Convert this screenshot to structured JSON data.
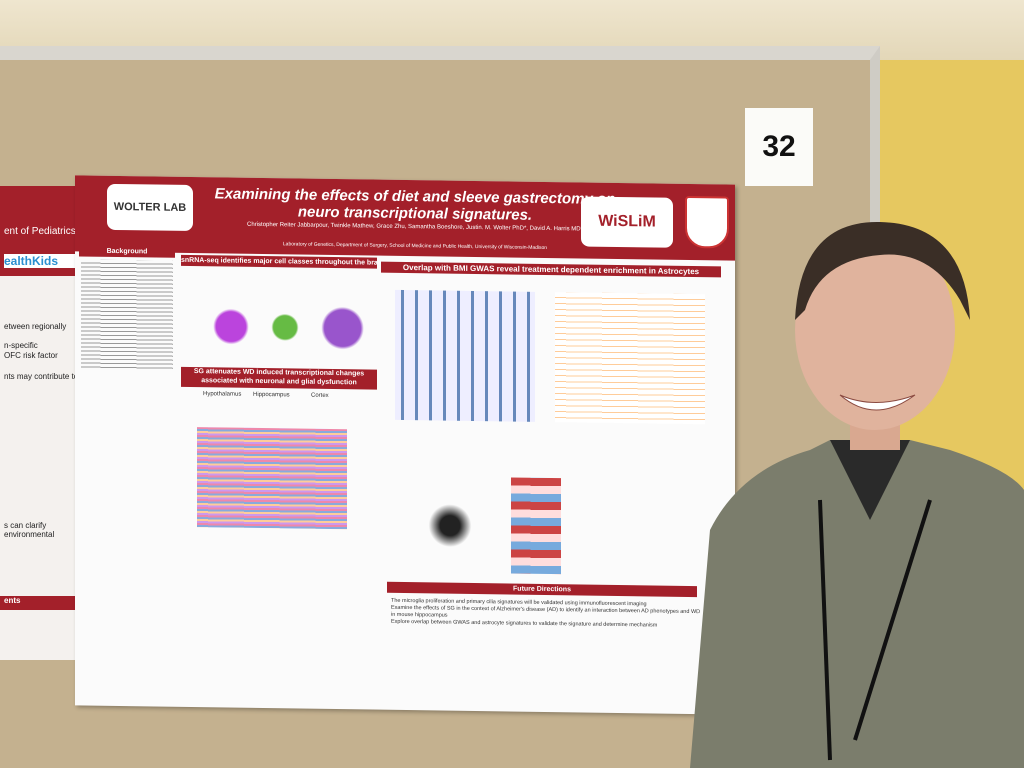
{
  "booth_number": "32",
  "left_poster": {
    "lines": [
      "ent of Pediatrics",
      "ealthKids",
      "etween regionally",
      "n-specific",
      "OFC risk factor",
      "nts may contribute to",
      "s can clarify environmental",
      "ents"
    ]
  },
  "poster": {
    "title": "Examining the effects of diet and sleeve gastrectomy on neuro transcriptional signatures.",
    "authors": "Christopher Reiter Jabbarpour, Twinkle Mathew, Grace Zhu, Samantha Boeshore, Justin. M. Wolter PhD*, David A. Harris MD*",
    "affiliation": "Laboratory of Genetics, Department of Surgery, School of Medicine and Public Health, University of Wisconsin-Madison",
    "logo_left": "WOLTER LAB",
    "logo_right": "WiSLiM",
    "sections": [
      "Background",
      "snRNA-seq identifies major cell classes throughout the brain",
      "SG attenuates WD induced transcriptional changes associated with neuronal and glial dysfunction",
      "Overlap with BMI GWAS reveal treatment dependent enrichment in Astrocytes",
      "Future Directions"
    ],
    "regions": [
      "Hypothalamus",
      "Hippocampus",
      "Cortex"
    ],
    "future_bullets": [
      "The microglia proliferation and primary cilia signatures will be validated using immunofluorescent imaging",
      "Examine the effects of SG in the context of Alzheimer's disease (AD) to identify an interaction between AD phenotypes and WD in mouse hippocampus",
      "Explore overlap between GWAS and astrocyte signatures to validate the signature and determine mechanism"
    ]
  }
}
